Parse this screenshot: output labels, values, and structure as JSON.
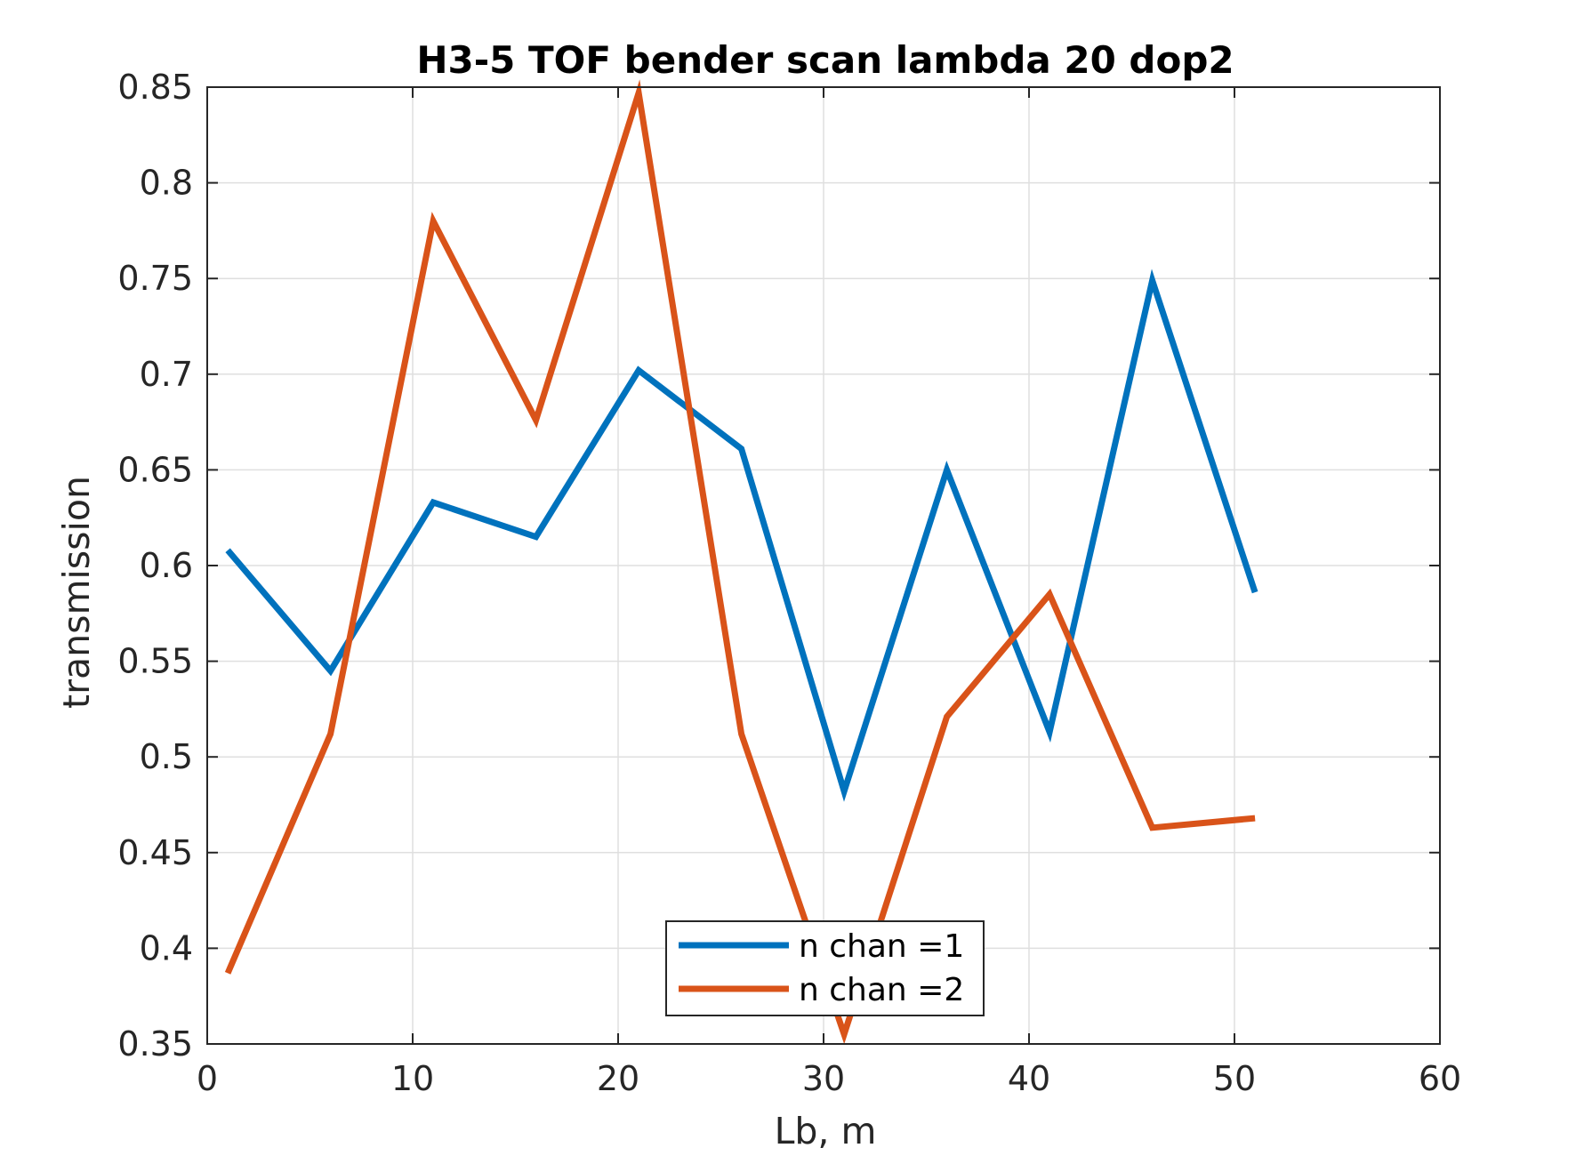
{
  "chart_data": {
    "type": "line",
    "title": "H3-5 TOF bender scan lambda 20 dop2",
    "xlabel": "Lb, m",
    "ylabel": "transmission",
    "xlim": [
      0,
      60
    ],
    "ylim": [
      0.35,
      0.85
    ],
    "xticks": [
      0,
      10,
      20,
      30,
      40,
      50,
      60
    ],
    "yticks": [
      0.35,
      0.4,
      0.45,
      0.5,
      0.55,
      0.6,
      0.65,
      0.7,
      0.75,
      0.8,
      0.85
    ],
    "xtick_labels": [
      "0",
      "10",
      "20",
      "30",
      "40",
      "50",
      "60"
    ],
    "ytick_labels": [
      "0.35",
      "0.4",
      "0.45",
      "0.5",
      "0.55",
      "0.6",
      "0.65",
      "0.7",
      "0.75",
      "0.8",
      "0.85"
    ],
    "grid": true,
    "legend_position": "bottom-center",
    "x": [
      1,
      6,
      11,
      16,
      21,
      26,
      31,
      36,
      41,
      46,
      51
    ],
    "series": [
      {
        "name": "n chan =1",
        "color": "#0072BD",
        "values": [
          0.608,
          0.545,
          0.633,
          0.615,
          0.702,
          0.661,
          0.482,
          0.65,
          0.513,
          0.749,
          0.586
        ]
      },
      {
        "name": "n chan =2",
        "color": "#D95319",
        "values": [
          0.387,
          0.512,
          0.78,
          0.676,
          0.847,
          0.512,
          0.355,
          0.521,
          0.585,
          0.463,
          0.468
        ]
      }
    ]
  }
}
